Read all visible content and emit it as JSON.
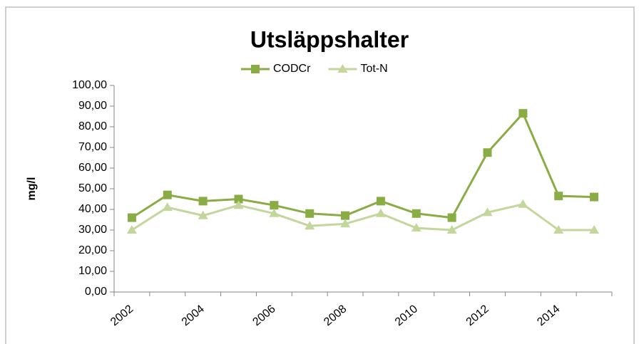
{
  "chart_data": {
    "type": "line",
    "title": "Utsläppshalter",
    "y_label": "mg/l",
    "categories": [
      "2002",
      null,
      "2004",
      null,
      "2006",
      null,
      "2008",
      null,
      "2010",
      null,
      "2012",
      null,
      "2014",
      null
    ],
    "series": [
      {
        "name": "CODCr",
        "color": "#8aac45",
        "marker": "square",
        "values": [
          36,
          47,
          44,
          45,
          42,
          38,
          37,
          44,
          38,
          36,
          67.5,
          86.5,
          46.5,
          46
        ]
      },
      {
        "name": "Tot-N",
        "color": "#c3d69b",
        "marker": "triangle",
        "values": [
          30,
          41,
          37,
          42,
          38,
          32,
          33,
          38,
          31,
          30,
          38.5,
          42.5,
          30,
          30
        ]
      }
    ],
    "ylim": [
      0,
      100
    ],
    "yticks": [
      {
        "value": 0,
        "label": "0,00"
      },
      {
        "value": 10,
        "label": "10,00"
      },
      {
        "value": 20,
        "label": "20,00"
      },
      {
        "value": 30,
        "label": "30,00"
      },
      {
        "value": 40,
        "label": "40,00"
      },
      {
        "value": 50,
        "label": "50,00"
      },
      {
        "value": 60,
        "label": "60,00"
      },
      {
        "value": 70,
        "label": "70,00"
      },
      {
        "value": 80,
        "label": "80,00"
      },
      {
        "value": 90,
        "label": "90,00"
      },
      {
        "value": 100,
        "label": "100,00"
      }
    ],
    "legend": "top"
  }
}
